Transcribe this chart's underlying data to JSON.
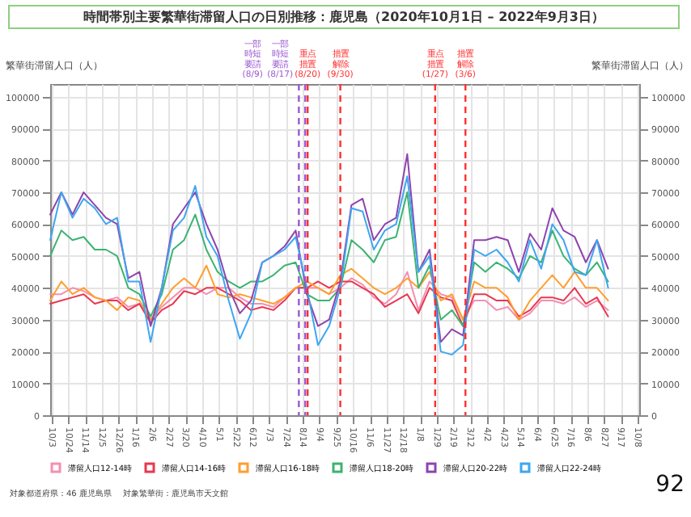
{
  "chart_data": {
    "type": "line",
    "title": "時間帯別主要繁華街滞留人口の日別推移：鹿児島（2020年10月1日 – 2022年9月3日）",
    "ylabel": "繁華街滞留人口（人）",
    "y2label": "繁華街滞留人口（人）",
    "x": [
      "2020-10-01",
      "2020-10-15",
      "2020-10-29",
      "2020-11-12",
      "2020-11-26",
      "2020-12-10",
      "2020-12-24",
      "2021-01-07",
      "2021-01-21",
      "2021-02-04",
      "2021-02-18",
      "2021-03-04",
      "2021-03-18",
      "2021-04-01",
      "2021-04-15",
      "2021-04-29",
      "2021-05-13",
      "2021-05-27",
      "2021-06-10",
      "2021-06-24",
      "2021-07-08",
      "2021-07-22",
      "2021-08-05",
      "2021-08-19",
      "2021-09-02",
      "2021-09-16",
      "2021-09-30",
      "2021-10-14",
      "2021-10-28",
      "2021-11-11",
      "2021-11-25",
      "2021-12-09",
      "2021-12-23",
      "2022-01-06",
      "2022-01-20",
      "2022-02-03",
      "2022-02-17",
      "2022-03-03",
      "2022-03-17",
      "2022-03-31",
      "2022-04-14",
      "2022-04-28",
      "2022-05-12",
      "2022-05-26",
      "2022-06-09",
      "2022-06-23",
      "2022-07-07",
      "2022-07-21",
      "2022-08-04",
      "2022-08-18",
      "2022-09-01"
    ],
    "series": [
      {
        "name": "滞留人口12-14時",
        "color": "#f48fb1",
        "values": [
          38000,
          38000,
          40000,
          39000,
          37000,
          36000,
          37000,
          34000,
          35000,
          30000,
          34000,
          37000,
          40000,
          40000,
          38000,
          40000,
          40000,
          37000,
          35000,
          35000,
          34000,
          37000,
          40000,
          40000,
          40000,
          38000,
          40000,
          43000,
          41000,
          37000,
          35000,
          38000,
          45000,
          33000,
          42000,
          38000,
          37000,
          30000,
          36000,
          36000,
          33000,
          34000,
          30000,
          32000,
          36000,
          36000,
          35000,
          37000,
          34000,
          36000,
          33000
        ]
      },
      {
        "name": "滞留人口14-16時",
        "color": "#e8384f",
        "values": [
          35000,
          36000,
          37000,
          38000,
          35000,
          36000,
          36000,
          33000,
          35000,
          29000,
          33000,
          35000,
          39000,
          38000,
          40000,
          40000,
          38000,
          36000,
          33000,
          34000,
          33000,
          36000,
          40000,
          40000,
          42000,
          40000,
          42000,
          42000,
          40000,
          38000,
          34000,
          36000,
          38000,
          32000,
          40000,
          37000,
          36000,
          28000,
          38000,
          38000,
          36000,
          36000,
          31000,
          33000,
          37000,
          37000,
          36000,
          40000,
          35000,
          37000,
          31000
        ]
      },
      {
        "name": "滞留人口16-18時",
        "color": "#ff9f2e",
        "values": [
          36000,
          42000,
          38000,
          40000,
          37000,
          36000,
          33000,
          37000,
          36000,
          30000,
          35000,
          40000,
          43000,
          40000,
          47000,
          38000,
          37000,
          38000,
          37000,
          36000,
          35000,
          37000,
          40000,
          42000,
          40000,
          38000,
          44000,
          46000,
          43000,
          40000,
          38000,
          40000,
          43000,
          40000,
          45000,
          36000,
          38000,
          30000,
          42000,
          40000,
          40000,
          37000,
          30000,
          36000,
          40000,
          44000,
          40000,
          45000,
          40000,
          40000,
          36000
        ]
      },
      {
        "name": "滞留人口18-20時",
        "color": "#3cb371",
        "values": [
          50000,
          58000,
          55000,
          56000,
          52000,
          52000,
          50000,
          40000,
          38000,
          31000,
          38000,
          52000,
          55000,
          63000,
          52000,
          45000,
          42000,
          40000,
          42000,
          42000,
          44000,
          47000,
          48000,
          38000,
          36000,
          36000,
          40000,
          55000,
          52000,
          48000,
          55000,
          56000,
          70000,
          40000,
          47000,
          30000,
          33000,
          28000,
          48000,
          45000,
          48000,
          46000,
          43000,
          50000,
          48000,
          58000,
          50000,
          46000,
          44000,
          48000,
          42000
        ]
      },
      {
        "name": "滞留人口20-22時",
        "color": "#8e44ad",
        "values": [
          63000,
          70000,
          63000,
          70000,
          66000,
          62000,
          60000,
          43000,
          45000,
          28000,
          40000,
          60000,
          65000,
          70000,
          60000,
          52000,
          40000,
          32000,
          36000,
          48000,
          50000,
          53000,
          58000,
          38000,
          28000,
          30000,
          42000,
          66000,
          68000,
          55000,
          60000,
          62000,
          82000,
          45000,
          52000,
          23000,
          27000,
          25000,
          55000,
          55000,
          56000,
          55000,
          45000,
          57000,
          52000,
          65000,
          58000,
          56000,
          48000,
          55000,
          46000
        ]
      },
      {
        "name": "滞留人口22-24時",
        "color": "#3ea6f0",
        "values": [
          55000,
          70000,
          62000,
          68000,
          65000,
          60000,
          62000,
          42000,
          42000,
          23000,
          40000,
          58000,
          62000,
          72000,
          56000,
          50000,
          36000,
          24000,
          32000,
          48000,
          50000,
          52000,
          56000,
          40000,
          22000,
          28000,
          40000,
          65000,
          64000,
          52000,
          58000,
          60000,
          75000,
          45000,
          50000,
          20000,
          19000,
          22000,
          52000,
          50000,
          52000,
          48000,
          42000,
          55000,
          46000,
          60000,
          55000,
          45000,
          44000,
          55000,
          40000
        ]
      }
    ],
    "ylim": [
      0,
      104000
    ],
    "yticks": [
      0,
      10000,
      20000,
      30000,
      40000,
      50000,
      60000,
      70000,
      80000,
      90000,
      100000
    ],
    "y2lim": [
      0,
      104000
    ],
    "y2ticks": [
      0,
      10000,
      20000,
      30000,
      40000,
      50000,
      60000,
      70000,
      80000,
      90000,
      100000
    ],
    "xlim": [
      "2020-10-01",
      "2022-10-10"
    ],
    "xticks": [
      {
        "value": "2020-10-03",
        "label": "10/3"
      },
      {
        "value": "2020-10-24",
        "label": "10/24"
      },
      {
        "value": "2020-11-14",
        "label": "11/14"
      },
      {
        "value": "2020-12-05",
        "label": "12/5"
      },
      {
        "value": "2020-12-26",
        "label": "12/26"
      },
      {
        "value": "2021-01-16",
        "label": "1/16"
      },
      {
        "value": "2021-02-06",
        "label": "2/6"
      },
      {
        "value": "2021-02-27",
        "label": "2/27"
      },
      {
        "value": "2021-03-20",
        "label": "3/20"
      },
      {
        "value": "2021-04-10",
        "label": "4/10"
      },
      {
        "value": "2021-05-01",
        "label": "5/1"
      },
      {
        "value": "2021-05-22",
        "label": "5/22"
      },
      {
        "value": "2021-06-12",
        "label": "6/12"
      },
      {
        "value": "2021-07-03",
        "label": "7/3"
      },
      {
        "value": "2021-07-24",
        "label": "7/24"
      },
      {
        "value": "2021-08-14",
        "label": "8/14"
      },
      {
        "value": "2021-09-04",
        "label": "9/4"
      },
      {
        "value": "2021-09-25",
        "label": "9/25"
      },
      {
        "value": "2021-10-16",
        "label": "10/16"
      },
      {
        "value": "2021-11-06",
        "label": "11/6"
      },
      {
        "value": "2021-11-27",
        "label": "11/27"
      },
      {
        "value": "2021-12-18",
        "label": "12/18"
      },
      {
        "value": "2022-01-08",
        "label": "1/8"
      },
      {
        "value": "2022-01-29",
        "label": "1/29"
      },
      {
        "value": "2022-02-19",
        "label": "2/19"
      },
      {
        "value": "2022-03-12",
        "label": "3/12"
      },
      {
        "value": "2022-04-02",
        "label": "4/2"
      },
      {
        "value": "2022-04-23",
        "label": "4/23"
      },
      {
        "value": "2022-05-14",
        "label": "5/14"
      },
      {
        "value": "2022-06-04",
        "label": "6/4"
      },
      {
        "value": "2022-06-25",
        "label": "6/25"
      },
      {
        "value": "2022-07-16",
        "label": "7/16"
      },
      {
        "value": "2022-08-06",
        "label": "8/6"
      },
      {
        "value": "2022-08-27",
        "label": "8/27"
      },
      {
        "value": "2022-09-17",
        "label": "9/17"
      },
      {
        "value": "2022-10-08",
        "label": "10/8"
      }
    ],
    "ref_lines": [
      {
        "axis": "x",
        "value": "2021-08-09",
        "label": "一部時短要請(8/9)",
        "color": "#9b59d0",
        "line_style": "dashed"
      },
      {
        "axis": "x",
        "value": "2021-08-17",
        "label": "一部時短要請(8/17)",
        "color": "#9b59d0",
        "line_style": "dashed"
      },
      {
        "axis": "x",
        "value": "2021-08-20",
        "label": "重点措置(8/20)",
        "color": "#ff3030",
        "line_style": "dashed"
      },
      {
        "axis": "x",
        "value": "2021-09-30",
        "label": "措置解除(9/30)",
        "color": "#ff3030",
        "line_style": "dashed"
      },
      {
        "axis": "x",
        "value": "2022-01-27",
        "label": "重点措置(1/27)",
        "color": "#ff3030",
        "line_style": "dashed"
      },
      {
        "axis": "x",
        "value": "2022-03-06",
        "label": "措置解除(3/6)",
        "color": "#ff3030",
        "line_style": "dashed"
      }
    ],
    "annotations": [
      "対象都道府県：46 鹿児島県",
      "対象繁華街：鹿児島市天文館",
      "92"
    ],
    "grid": true,
    "legend": "bottom",
    "marker": "none",
    "line_style": "solid"
  }
}
